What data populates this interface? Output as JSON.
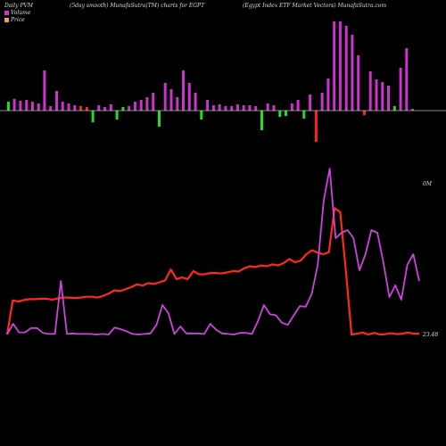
{
  "header": {
    "left": "Daily PVM",
    "mid1": "(5day smooth) MunafaSutra(TM) charts for EGPT",
    "mid2": "(Egypt Index ETF Market Vectors) MunafaSutra.com"
  },
  "legend": {
    "volume": "Volume",
    "price": "Price",
    "volume_color": "#cc33cc",
    "price_color": "#e8a060"
  },
  "colors": {
    "up_bar": "#cc33cc",
    "down_bar_red": "#ff2222",
    "down_bar_green": "#22dd22",
    "price_line": "#ff2a1a",
    "volume_line": "#cc44dd",
    "baseline": "#bbbbbb"
  },
  "chart_data": {
    "type": "line",
    "right_labels": [
      "0M",
      "23.48"
    ],
    "bars": [
      {
        "v": 0.1,
        "c": "g"
      },
      {
        "v": 0.13,
        "c": "p"
      },
      {
        "v": 0.11,
        "c": "p"
      },
      {
        "v": 0.12,
        "c": "p"
      },
      {
        "v": 0.1,
        "c": "p"
      },
      {
        "v": 0.08,
        "c": "p"
      },
      {
        "v": 0.45,
        "c": "p"
      },
      {
        "v": 0.05,
        "c": "p"
      },
      {
        "v": 0.22,
        "c": "p"
      },
      {
        "v": 0.1,
        "c": "p"
      },
      {
        "v": 0.08,
        "c": "p"
      },
      {
        "v": 0.06,
        "c": "p"
      },
      {
        "v": 0.05,
        "c": "r"
      },
      {
        "v": 0.04,
        "c": "r"
      },
      {
        "v": -0.13,
        "c": "g"
      },
      {
        "v": 0.06,
        "c": "p"
      },
      {
        "v": 0.04,
        "c": "p"
      },
      {
        "v": 0.07,
        "c": "p"
      },
      {
        "v": -0.1,
        "c": "g"
      },
      {
        "v": 0.04,
        "c": "g"
      },
      {
        "v": 0.05,
        "c": "p"
      },
      {
        "v": 0.1,
        "c": "p"
      },
      {
        "v": 0.12,
        "c": "p"
      },
      {
        "v": 0.15,
        "c": "p"
      },
      {
        "v": 0.2,
        "c": "p"
      },
      {
        "v": -0.18,
        "c": "g"
      },
      {
        "v": 0.31,
        "c": "p"
      },
      {
        "v": 0.24,
        "c": "p"
      },
      {
        "v": 0.15,
        "c": "p"
      },
      {
        "v": 0.45,
        "c": "p"
      },
      {
        "v": 0.31,
        "c": "p"
      },
      {
        "v": 0.2,
        "c": "p"
      },
      {
        "v": -0.1,
        "c": "g"
      },
      {
        "v": 0.12,
        "c": "p"
      },
      {
        "v": 0.06,
        "c": "p"
      },
      {
        "v": 0.07,
        "c": "p"
      },
      {
        "v": 0.05,
        "c": "p"
      },
      {
        "v": 0.05,
        "c": "p"
      },
      {
        "v": 0.07,
        "c": "p"
      },
      {
        "v": 0.06,
        "c": "p"
      },
      {
        "v": 0.06,
        "c": "p"
      },
      {
        "v": 0.05,
        "c": "p"
      },
      {
        "v": -0.22,
        "c": "g"
      },
      {
        "v": 0.08,
        "c": "p"
      },
      {
        "v": 0.06,
        "c": "p"
      },
      {
        "v": -0.07,
        "c": "g"
      },
      {
        "v": -0.06,
        "c": "g"
      },
      {
        "v": 0.08,
        "c": "p"
      },
      {
        "v": 0.12,
        "c": "p"
      },
      {
        "v": -0.09,
        "c": "g"
      },
      {
        "v": 0.18,
        "c": "p"
      },
      {
        "v": -0.35,
        "c": "r"
      },
      {
        "v": 0.2,
        "c": "p"
      },
      {
        "v": 0.36,
        "c": "p"
      },
      {
        "v": 1.0,
        "c": "p"
      },
      {
        "v": 1.0,
        "c": "p"
      },
      {
        "v": 0.95,
        "c": "p"
      },
      {
        "v": 0.85,
        "c": "p"
      },
      {
        "v": 0.62,
        "c": "p"
      },
      {
        "v": -0.05,
        "c": "r"
      },
      {
        "v": 0.44,
        "c": "p"
      },
      {
        "v": 0.35,
        "c": "p"
      },
      {
        "v": 0.32,
        "c": "p"
      },
      {
        "v": 0.28,
        "c": "p"
      },
      {
        "v": 0.05,
        "c": "g"
      },
      {
        "v": 0.48,
        "c": "p"
      },
      {
        "v": 0.7,
        "c": "p"
      },
      {
        "v": 0.02,
        "c": "p"
      }
    ],
    "price": [
      0.0,
      0.85,
      0.82,
      0.86,
      0.88,
      0.88,
      0.89,
      0.89,
      0.87,
      0.9,
      0.92,
      0.92,
      0.91,
      0.92,
      0.94,
      0.94,
      0.92,
      0.96,
      1.02,
      1.1,
      1.08,
      1.13,
      1.18,
      1.25,
      1.22,
      1.28,
      1.26,
      1.3,
      1.35,
      1.62,
      1.38,
      1.42,
      1.38,
      1.58,
      1.5,
      1.5,
      1.53,
      1.53,
      1.52,
      1.55,
      1.58,
      1.57,
      1.65,
      1.7,
      1.68,
      1.72,
      1.7,
      1.75,
      1.72,
      1.78,
      1.88,
      1.8,
      1.84,
      2.0,
      2.1,
      2.04,
      2.0,
      2.05,
      3.15,
      3.05,
      1.6,
      0.0,
      0.02,
      0.05,
      0.0,
      0.04,
      0.0,
      0.01,
      0.03,
      0.01,
      0.02,
      0.05,
      0.02,
      0.02
    ],
    "volume": [
      0.0,
      0.2,
      0.04,
      0.04,
      0.12,
      0.12,
      0.03,
      0.01,
      0.01,
      1.0,
      0.01,
      0.02,
      0.01,
      0.01,
      0.01,
      0.0,
      0.01,
      0.0,
      0.13,
      0.1,
      0.06,
      0.01,
      0.0,
      0.01,
      0.02,
      0.18,
      0.55,
      0.4,
      0.01,
      0.15,
      0.02,
      0.02,
      0.02,
      0.01,
      0.2,
      0.09,
      0.02,
      0.01,
      0.0,
      0.03,
      0.03,
      0.01,
      0.25,
      0.55,
      0.38,
      0.36,
      0.22,
      0.18,
      0.36,
      0.53,
      0.52,
      0.76,
      1.3,
      2.5,
      3.1,
      1.8,
      1.9,
      1.95,
      1.8,
      1.2,
      1.5,
      1.95,
      1.9,
      1.35,
      0.7,
      0.92,
      0.65,
      1.3,
      1.5,
      1.0
    ]
  }
}
